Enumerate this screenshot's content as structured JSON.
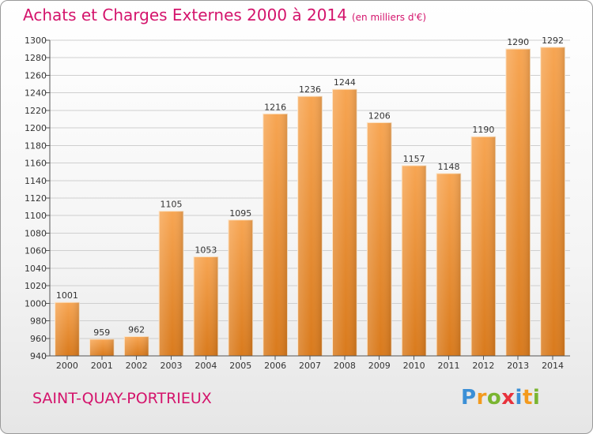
{
  "title": "Achats et Charges Externes 2000 à 2014",
  "subtitle": "(en milliers d'€)",
  "city": "SAINT-QUAY-PORTRIEUX",
  "logo": {
    "text": "Proxiti",
    "colors": [
      "#3b8fd6",
      "#f39a1e",
      "#7ab531",
      "#e8323c",
      "#3b8fd6",
      "#f39a1e",
      "#7ab531"
    ]
  },
  "colors": {
    "bar_top": "#f7a552",
    "bar_bottom": "#d97a1c",
    "title": "#d4146c"
  },
  "chart_data": {
    "type": "bar",
    "title": "Achats et Charges Externes 2000 à 2014",
    "categories": [
      "2000",
      "2001",
      "2002",
      "2003",
      "2004",
      "2005",
      "2006",
      "2007",
      "2008",
      "2009",
      "2010",
      "2011",
      "2012",
      "2013",
      "2014"
    ],
    "values": [
      1001,
      959,
      962,
      1105,
      1053,
      1095,
      1216,
      1236,
      1244,
      1206,
      1157,
      1148,
      1190,
      1290,
      1292
    ],
    "xlabel": "",
    "ylabel": "",
    "ylim": [
      940,
      1300
    ],
    "yticks": [
      940,
      960,
      980,
      1000,
      1020,
      1040,
      1060,
      1080,
      1100,
      1120,
      1140,
      1160,
      1180,
      1200,
      1220,
      1240,
      1260,
      1280,
      1300
    ],
    "grid": true,
    "legend": "none"
  }
}
